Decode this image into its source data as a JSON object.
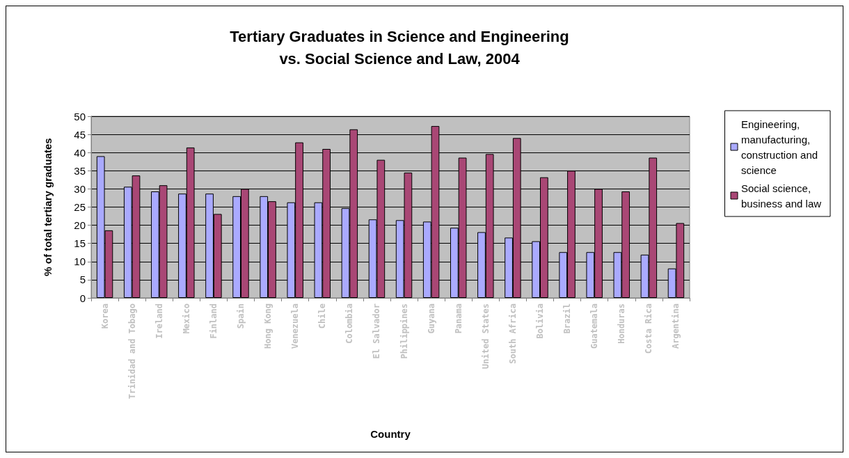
{
  "chart_data": {
    "type": "bar",
    "title": "Tertiary Graduates in Science and Engineering\nvs. Social Science and Law, 2004",
    "xlabel": "Country",
    "ylabel": "% of total tertiary graduates",
    "categories": [
      "Korea",
      "Trinidad and Tobago",
      "Ireland",
      "Mexico",
      "Finland",
      "Spain",
      "Hong Kong",
      "Venezuela",
      "Chile",
      "Colombia",
      "El Salvador",
      "Philippines",
      "Guyana",
      "Panama",
      "United States",
      "South Africa",
      "Bolivia",
      "Brazil",
      "Guatemala",
      "Honduras",
      "Costa Rica",
      "Argentina"
    ],
    "series": [
      {
        "name": "Engineering, manufacturing, construction and science",
        "color": "#aaaaff",
        "values": [
          39.0,
          30.6,
          29.3,
          28.7,
          28.7,
          28.0,
          28.0,
          26.3,
          26.3,
          24.7,
          21.6,
          21.4,
          21.0,
          19.3,
          18.1,
          16.6,
          15.6,
          12.6,
          12.6,
          12.6,
          11.9,
          8.1
        ]
      },
      {
        "name": "Social science, business and law",
        "color": "#a94775",
        "values": [
          18.6,
          33.7,
          31.0,
          41.4,
          23.1,
          30.0,
          26.6,
          42.8,
          41.0,
          46.4,
          38.0,
          34.5,
          47.3,
          38.6,
          39.6,
          44.0,
          33.2,
          35.0,
          30.0,
          29.3,
          38.6,
          20.6
        ]
      }
    ],
    "ylim": [
      0,
      50
    ],
    "yticks": [
      0,
      5,
      10,
      15,
      20,
      25,
      30,
      35,
      40,
      45,
      50
    ],
    "grid": "y",
    "legend": "right"
  }
}
